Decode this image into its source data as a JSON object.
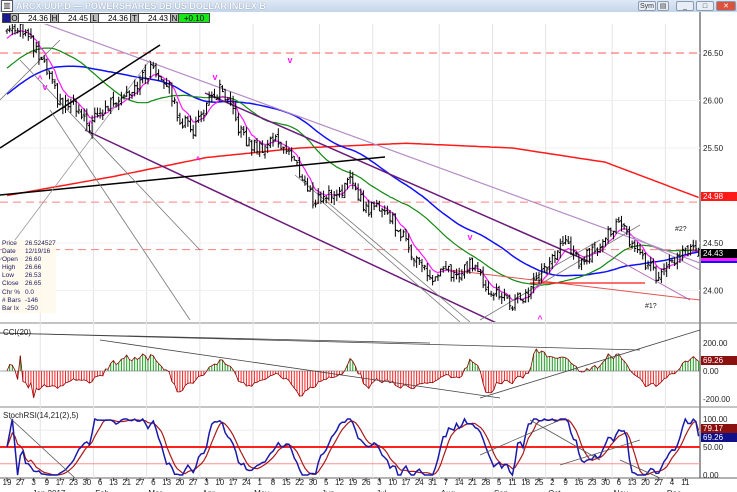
{
  "window": {
    "title": "ARCX.UUP.D — POWERSHARES DB US DOLLAR INDEX B",
    "sym_button": "Sym",
    "buttons": [
      "minimize",
      "maximize",
      "close"
    ]
  },
  "quote": {
    "open_label": "O",
    "open": "24.36",
    "high_label": "H",
    "high": "24.45",
    "low_label": "L",
    "low": "24.36",
    "last_label": "T",
    "last": "24.43",
    "net_label": "N",
    "net": "+0.10"
  },
  "info": {
    "price_label": "Price",
    "price": "26.524527",
    "date_label": "Date",
    "date": "12/19/16",
    "open_label": "Open",
    "open": "26.60",
    "high_label": "High",
    "high": "26.66",
    "low_label": "Low",
    "low": "26.53",
    "close_label": "Close",
    "close": "26.65",
    "chg_label": "Chr %",
    "chg": "0.0",
    "bars_label": "# Bars",
    "bars": "-146",
    "barix_label": "Bar Ix",
    "barix": "-250"
  },
  "chart_data": [
    {
      "type": "ohlc",
      "panel": "price",
      "y_ticks": [
        "26.50",
        "26.00",
        "25.50",
        "24.50",
        "24.00"
      ],
      "ylim": [
        23.7,
        26.9
      ],
      "week_labels": [
        "19",
        "27",
        "3",
        "9",
        "17",
        "23",
        "30",
        "6",
        "13",
        "21",
        "27",
        "6",
        "13",
        "20",
        "27",
        "3",
        "10",
        "17",
        "24",
        "1",
        "8",
        "15",
        "22",
        "30",
        "5",
        "12",
        "19",
        "26",
        "3",
        "10",
        "17",
        "24",
        "31",
        "7",
        "14",
        "21",
        "28",
        "5",
        "11",
        "18",
        "25",
        "2",
        "9",
        "16",
        "23",
        "30",
        "6",
        "13",
        "20",
        "27",
        "4",
        "11"
      ],
      "month_labels": [
        {
          "label": "Jan 2017",
          "week": 3
        },
        {
          "label": "Feb",
          "week": 7
        },
        {
          "label": "Mar",
          "week": 11
        },
        {
          "label": "Apr",
          "week": 15
        },
        {
          "label": "May",
          "week": 19
        },
        {
          "label": "Jun",
          "week": 24
        },
        {
          "label": "Jul",
          "week": 28
        },
        {
          "label": "Aug",
          "week": 33
        },
        {
          "label": "Sep",
          "week": 37
        },
        {
          "label": "Oct",
          "week": 41
        },
        {
          "label": "Nov",
          "week": 46
        },
        {
          "label": "Dec",
          "week": 50
        }
      ],
      "weekly_close": [
        26.75,
        26.8,
        26.55,
        26.3,
        25.95,
        25.95,
        25.72,
        25.85,
        26.0,
        26.1,
        26.2,
        26.35,
        26.2,
        25.8,
        25.7,
        25.95,
        26.1,
        25.85,
        25.55,
        25.5,
        25.6,
        25.5,
        25.25,
        24.95,
        25.0,
        25.05,
        25.15,
        24.85,
        24.9,
        24.75,
        24.5,
        24.3,
        24.1,
        24.2,
        24.15,
        24.3,
        24.05,
        23.95,
        23.85,
        23.95,
        24.15,
        24.35,
        24.5,
        24.3,
        24.4,
        24.6,
        24.7,
        24.5,
        24.3,
        24.1,
        24.3,
        24.4,
        24.43
      ],
      "ma_long_weekly": [
        [
          0,
          25.0
        ],
        [
          8,
          25.2
        ],
        [
          15,
          25.4
        ],
        [
          22,
          25.5
        ],
        [
          30,
          25.55
        ],
        [
          38,
          25.5
        ],
        [
          45,
          25.35
        ],
        [
          52,
          24.98
        ]
      ],
      "moving_average_colors": {
        "short": "#ff1aff",
        "mid": "#118811",
        "long_mid": "#1010ff",
        "long": "#ff1a1a"
      },
      "price_tags": {
        "ma_long": "24.98",
        "last": "24.43"
      },
      "annotations": [
        "#2?",
        "#1?"
      ]
    },
    {
      "type": "histogram",
      "panel": "cci",
      "title": "CCI(20)",
      "y_ticks": [
        "200.00",
        "0.00",
        "-200.00"
      ],
      "last_tag": "69.26",
      "colors": {
        "positive": "#1a9a1a",
        "negative": "#ff2020"
      }
    },
    {
      "type": "line",
      "panel": "stochrsi",
      "title": "StochRSI(14,21(2),5)",
      "y_ticks": [
        "100.00",
        "50.00",
        "0.00"
      ],
      "tags": {
        "slow": "79.17",
        "fast": "69.26"
      },
      "colors": {
        "fast": "#1a1aaa",
        "slow": "#aa1a1a"
      }
    }
  ]
}
